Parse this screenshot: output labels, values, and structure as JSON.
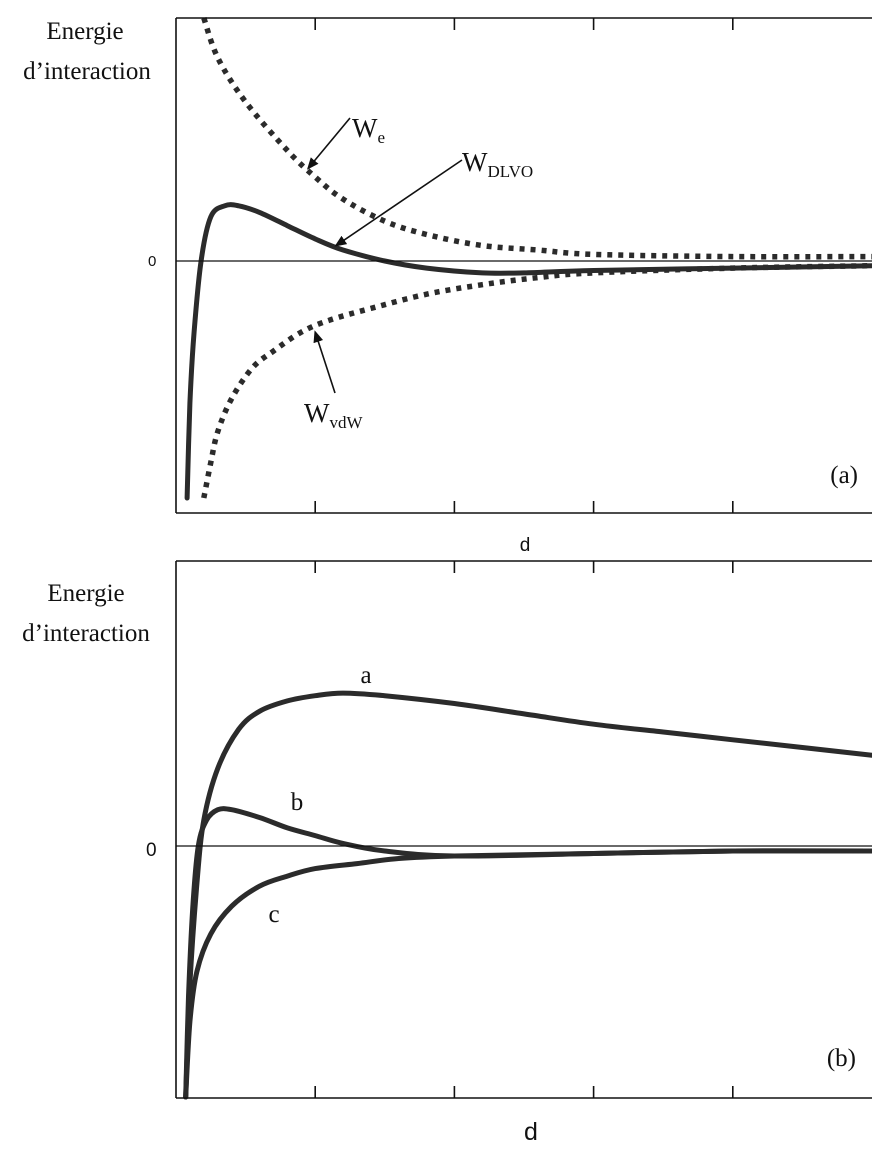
{
  "chart_data": [
    {
      "type": "line",
      "panel_label": "(a)",
      "ylabel_line1": "Energie",
      "ylabel_line2": "d’interaction",
      "xlabel": "d",
      "ytick_label": "0",
      "xlim": [
        0,
        5
      ],
      "ylim": [
        -1,
        1.1
      ],
      "x_ticks": [
        1,
        2,
        3,
        4
      ],
      "series": [
        {
          "id": "We",
          "label_main": "W",
          "label_sub": "e",
          "style": "dotted",
          "points": [
            [
              0.2,
              1.1
            ],
            [
              0.3,
              0.92
            ],
            [
              0.5,
              0.72
            ],
            [
              0.8,
              0.5
            ],
            [
              1.0,
              0.38
            ],
            [
              1.2,
              0.28
            ],
            [
              1.5,
              0.18
            ],
            [
              1.8,
              0.12
            ],
            [
              2.2,
              0.07
            ],
            [
              2.6,
              0.05
            ],
            [
              3.0,
              0.03
            ],
            [
              4.0,
              0.02
            ],
            [
              5.0,
              0.02
            ]
          ]
        },
        {
          "id": "WDLVO",
          "label_main": "W",
          "label_sub": "DLVO",
          "style": "solid",
          "points": [
            [
              0.08,
              -1.0
            ],
            [
              0.1,
              -0.6
            ],
            [
              0.13,
              -0.3
            ],
            [
              0.18,
              0.0
            ],
            [
              0.25,
              0.2
            ],
            [
              0.35,
              0.25
            ],
            [
              0.45,
              0.25
            ],
            [
              0.6,
              0.22
            ],
            [
              0.8,
              0.16
            ],
            [
              1.0,
              0.1
            ],
            [
              1.2,
              0.05
            ],
            [
              1.5,
              0.0
            ],
            [
              1.8,
              -0.03
            ],
            [
              2.2,
              -0.05
            ],
            [
              2.5,
              -0.05
            ],
            [
              3.0,
              -0.04
            ],
            [
              4.0,
              -0.03
            ],
            [
              5.0,
              -0.02
            ]
          ]
        },
        {
          "id": "WvdW",
          "label_main": "W",
          "label_sub": "vdW",
          "style": "dotted",
          "points": [
            [
              0.2,
              -1.0
            ],
            [
              0.25,
              -0.85
            ],
            [
              0.3,
              -0.72
            ],
            [
              0.4,
              -0.58
            ],
            [
              0.55,
              -0.45
            ],
            [
              0.7,
              -0.38
            ],
            [
              0.9,
              -0.3
            ],
            [
              1.1,
              -0.25
            ],
            [
              1.4,
              -0.2
            ],
            [
              1.8,
              -0.14
            ],
            [
              2.2,
              -0.1
            ],
            [
              2.6,
              -0.07
            ],
            [
              3.0,
              -0.05
            ],
            [
              4.0,
              -0.03
            ],
            [
              5.0,
              -0.02
            ]
          ]
        }
      ],
      "annotations": [
        {
          "target": "We",
          "arrow_to": [
            0.95,
            0.42
          ]
        },
        {
          "target": "WDLVO",
          "arrow_to": [
            1.15,
            0.07
          ]
        },
        {
          "target": "WvdW",
          "arrow_to": [
            1.0,
            -0.3
          ]
        }
      ]
    },
    {
      "type": "line",
      "panel_label": "(b)",
      "ylabel_line1": "Energie",
      "ylabel_line2": "d’interaction",
      "xlabel": "d",
      "ytick_label": "0",
      "xlim": [
        0,
        5
      ],
      "ylim": [
        -1,
        1.1
      ],
      "x_ticks": [
        1,
        2,
        3,
        4
      ],
      "series": [
        {
          "id": "a",
          "label": "a",
          "style": "solid",
          "points": [
            [
              0.07,
              -1.0
            ],
            [
              0.1,
              -0.55
            ],
            [
              0.15,
              -0.15
            ],
            [
              0.2,
              0.1
            ],
            [
              0.3,
              0.3
            ],
            [
              0.45,
              0.45
            ],
            [
              0.6,
              0.52
            ],
            [
              0.8,
              0.56
            ],
            [
              1.0,
              0.58
            ],
            [
              1.2,
              0.59
            ],
            [
              1.5,
              0.58
            ],
            [
              2.0,
              0.55
            ],
            [
              2.5,
              0.51
            ],
            [
              3.0,
              0.47
            ],
            [
              3.5,
              0.44
            ],
            [
              4.0,
              0.41
            ],
            [
              4.5,
              0.38
            ],
            [
              5.0,
              0.35
            ]
          ]
        },
        {
          "id": "b",
          "label": "b",
          "style": "solid",
          "points": [
            [
              0.07,
              -1.0
            ],
            [
              0.09,
              -0.6
            ],
            [
              0.12,
              -0.25
            ],
            [
              0.16,
              0.0
            ],
            [
              0.22,
              0.1
            ],
            [
              0.3,
              0.14
            ],
            [
              0.4,
              0.14
            ],
            [
              0.6,
              0.11
            ],
            [
              0.8,
              0.07
            ],
            [
              1.0,
              0.04
            ],
            [
              1.2,
              0.01
            ],
            [
              1.5,
              -0.02
            ],
            [
              2.0,
              -0.04
            ],
            [
              3.0,
              -0.03
            ],
            [
              4.0,
              -0.02
            ],
            [
              5.0,
              -0.02
            ]
          ]
        },
        {
          "id": "c",
          "label": "c",
          "style": "solid",
          "points": [
            [
              0.07,
              -1.0
            ],
            [
              0.1,
              -0.7
            ],
            [
              0.15,
              -0.5
            ],
            [
              0.25,
              -0.35
            ],
            [
              0.4,
              -0.24
            ],
            [
              0.6,
              -0.16
            ],
            [
              0.8,
              -0.12
            ],
            [
              1.0,
              -0.09
            ],
            [
              1.3,
              -0.07
            ],
            [
              1.6,
              -0.05
            ],
            [
              2.0,
              -0.04
            ],
            [
              3.0,
              -0.03
            ],
            [
              4.0,
              -0.02
            ],
            [
              5.0,
              -0.02
            ]
          ]
        }
      ]
    }
  ]
}
